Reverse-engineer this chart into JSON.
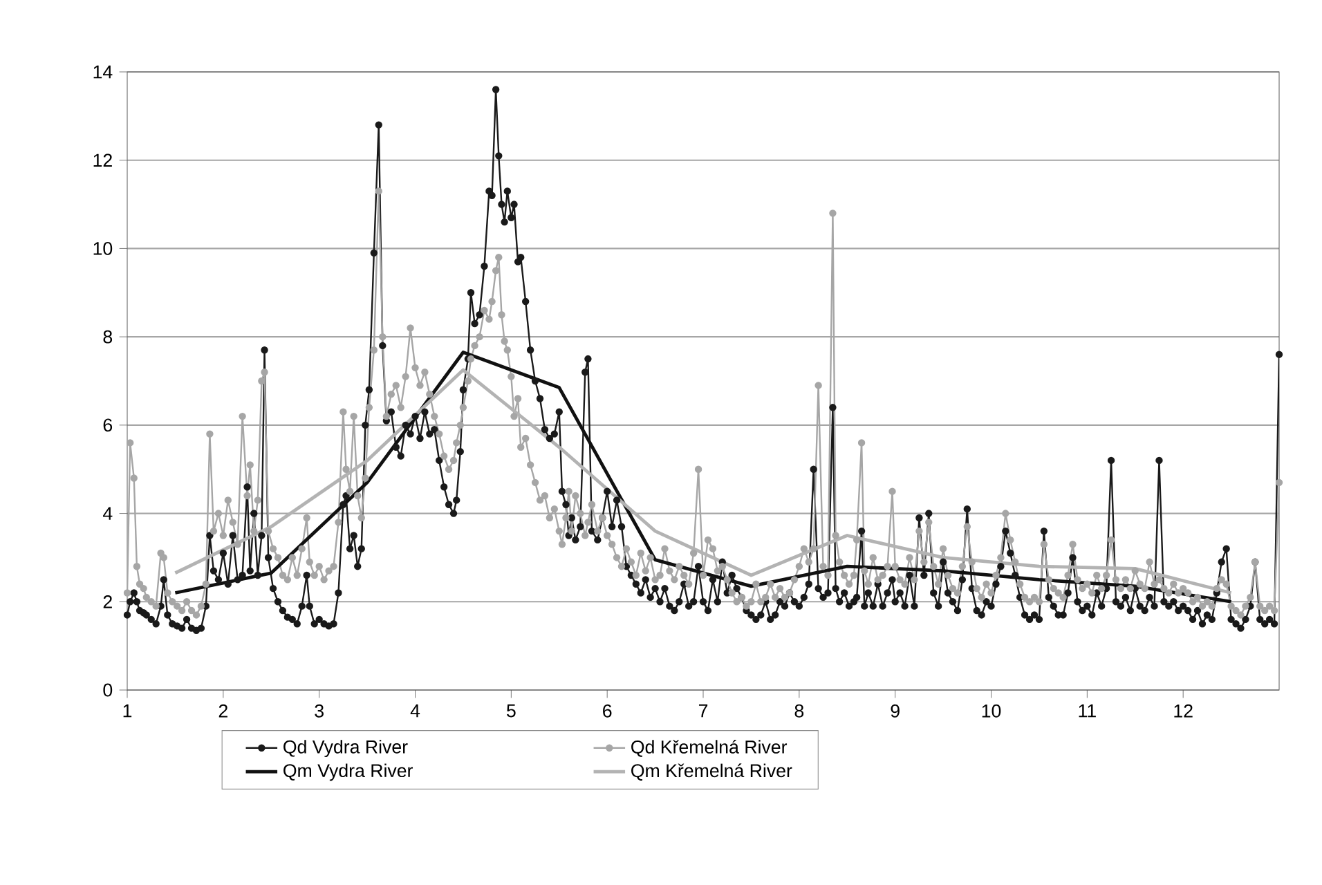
{
  "chart_data": {
    "type": "line",
    "x": [
      1.0,
      1.03,
      1.07,
      1.1,
      1.13,
      1.17,
      1.2,
      1.25,
      1.3,
      1.35,
      1.38,
      1.42,
      1.47,
      1.52,
      1.57,
      1.62,
      1.67,
      1.72,
      1.77,
      1.82,
      1.86,
      1.9,
      1.95,
      2.0,
      2.05,
      2.1,
      2.15,
      2.2,
      2.25,
      2.28,
      2.32,
      2.36,
      2.4,
      2.43,
      2.47,
      2.52,
      2.57,
      2.62,
      2.67,
      2.72,
      2.77,
      2.82,
      2.87,
      2.9,
      2.95,
      3.0,
      3.05,
      3.1,
      3.15,
      3.2,
      3.25,
      3.28,
      3.32,
      3.36,
      3.4,
      3.44,
      3.48,
      3.52,
      3.57,
      3.62,
      3.66,
      3.7,
      3.75,
      3.8,
      3.85,
      3.9,
      3.95,
      4.0,
      4.05,
      4.1,
      4.15,
      4.2,
      4.25,
      4.3,
      4.35,
      4.4,
      4.43,
      4.47,
      4.5,
      4.55,
      4.58,
      4.62,
      4.67,
      4.72,
      4.77,
      4.8,
      4.84,
      4.87,
      4.9,
      4.93,
      4.96,
      5.0,
      5.03,
      5.07,
      5.1,
      5.15,
      5.2,
      5.25,
      5.3,
      5.35,
      5.4,
      5.45,
      5.5,
      5.53,
      5.57,
      5.6,
      5.63,
      5.67,
      5.72,
      5.77,
      5.8,
      5.84,
      5.9,
      5.95,
      6.0,
      6.05,
      6.1,
      6.15,
      6.2,
      6.25,
      6.3,
      6.35,
      6.4,
      6.45,
      6.5,
      6.55,
      6.6,
      6.65,
      6.7,
      6.75,
      6.8,
      6.85,
      6.9,
      6.95,
      7.0,
      7.05,
      7.1,
      7.15,
      7.2,
      7.25,
      7.3,
      7.35,
      7.4,
      7.45,
      7.5,
      7.55,
      7.6,
      7.65,
      7.7,
      7.75,
      7.8,
      7.85,
      7.9,
      7.95,
      8.0,
      8.05,
      8.1,
      8.15,
      8.2,
      8.25,
      8.3,
      8.35,
      8.38,
      8.42,
      8.47,
      8.52,
      8.57,
      8.6,
      8.65,
      8.68,
      8.72,
      8.77,
      8.82,
      8.87,
      8.92,
      8.97,
      9.0,
      9.05,
      9.1,
      9.15,
      9.2,
      9.25,
      9.3,
      9.35,
      9.4,
      9.45,
      9.5,
      9.55,
      9.6,
      9.65,
      9.7,
      9.75,
      9.8,
      9.85,
      9.9,
      9.95,
      10.0,
      10.05,
      10.1,
      10.15,
      10.2,
      10.25,
      10.3,
      10.35,
      10.4,
      10.45,
      10.5,
      10.55,
      10.6,
      10.65,
      10.7,
      10.75,
      10.8,
      10.85,
      10.9,
      10.95,
      11.0,
      11.05,
      11.1,
      11.15,
      11.2,
      11.25,
      11.3,
      11.35,
      11.4,
      11.45,
      11.5,
      11.55,
      11.6,
      11.65,
      11.7,
      11.75,
      11.8,
      11.85,
      11.9,
      11.95,
      12.0,
      12.05,
      12.1,
      12.15,
      12.2,
      12.25,
      12.3,
      12.35,
      12.4,
      12.45,
      12.5,
      12.55,
      12.6,
      12.65,
      12.7,
      12.75,
      12.8,
      12.85,
      12.9,
      12.95,
      13.0
    ],
    "series": [
      {
        "name": "Qd Vydra River",
        "color": "#1a1a1a",
        "marker": "circle",
        "values": [
          1.7,
          2.0,
          2.2,
          2.0,
          1.8,
          1.75,
          1.7,
          1.6,
          1.5,
          1.9,
          2.5,
          1.7,
          1.5,
          1.45,
          1.4,
          1.6,
          1.4,
          1.35,
          1.4,
          1.9,
          3.5,
          2.7,
          2.5,
          3.1,
          2.4,
          3.5,
          2.5,
          2.6,
          4.6,
          2.7,
          4.0,
          2.6,
          3.5,
          7.7,
          3.0,
          2.3,
          2.0,
          1.8,
          1.65,
          1.6,
          1.5,
          1.9,
          2.6,
          1.9,
          1.5,
          1.6,
          1.5,
          1.45,
          1.5,
          2.2,
          4.2,
          4.4,
          3.2,
          3.5,
          2.8,
          3.2,
          6.0,
          6.8,
          9.9,
          12.8,
          7.8,
          6.1,
          6.3,
          5.5,
          5.3,
          6.0,
          5.8,
          6.2,
          5.7,
          6.3,
          5.8,
          5.9,
          5.2,
          4.6,
          4.2,
          4.0,
          4.3,
          5.4,
          6.8,
          7.5,
          9.0,
          8.3,
          8.5,
          9.6,
          11.3,
          11.2,
          13.6,
          12.1,
          11.0,
          10.6,
          11.3,
          10.7,
          11.0,
          9.7,
          9.8,
          8.8,
          7.7,
          7.0,
          6.6,
          5.9,
          5.7,
          5.8,
          6.3,
          4.5,
          4.2,
          3.5,
          3.9,
          3.4,
          3.7,
          7.2,
          7.5,
          3.6,
          3.4,
          3.9,
          4.5,
          3.7,
          4.3,
          3.7,
          2.8,
          2.6,
          2.4,
          2.2,
          2.5,
          2.1,
          2.3,
          2.0,
          2.3,
          1.9,
          1.8,
          2.0,
          2.4,
          1.9,
          2.0,
          2.8,
          2.0,
          1.8,
          2.5,
          2.0,
          2.9,
          2.2,
          2.6,
          2.3,
          2.1,
          1.8,
          1.7,
          1.6,
          1.7,
          2.0,
          1.6,
          1.7,
          2.0,
          1.9,
          2.2,
          2.0,
          1.9,
          2.1,
          2.4,
          5.0,
          2.3,
          2.1,
          2.2,
          6.4,
          2.3,
          2.0,
          2.2,
          1.9,
          2.0,
          2.1,
          3.6,
          1.9,
          2.2,
          1.9,
          2.4,
          1.9,
          2.2,
          2.5,
          2.0,
          2.2,
          1.9,
          2.6,
          1.9,
          3.9,
          2.6,
          4.0,
          2.2,
          1.9,
          2.9,
          2.2,
          2.0,
          1.8,
          2.5,
          4.1,
          2.3,
          1.8,
          1.7,
          2.0,
          1.9,
          2.4,
          2.8,
          3.6,
          3.1,
          2.6,
          2.1,
          1.7,
          1.6,
          1.7,
          1.6,
          3.6,
          2.1,
          1.9,
          1.7,
          1.7,
          2.2,
          3.0,
          2.0,
          1.8,
          1.9,
          1.7,
          2.2,
          1.9,
          2.3,
          5.2,
          2.0,
          1.9,
          2.1,
          1.8,
          2.3,
          1.9,
          1.8,
          2.1,
          1.9,
          5.2,
          2.0,
          1.9,
          2.0,
          1.8,
          1.9,
          1.8,
          1.6,
          1.8,
          1.5,
          1.7,
          1.6,
          2.2,
          2.9,
          3.2,
          1.6,
          1.5,
          1.4,
          1.6,
          1.9,
          2.9,
          1.6,
          1.5,
          1.6,
          1.5,
          7.6
        ]
      },
      {
        "name": "Qd Křemelná River",
        "color": "#a6a6a6",
        "marker": "circle",
        "values": [
          2.2,
          5.6,
          4.8,
          2.8,
          2.4,
          2.3,
          2.1,
          2.0,
          1.9,
          3.1,
          3.0,
          2.2,
          2.0,
          1.9,
          1.8,
          2.0,
          1.8,
          1.7,
          1.9,
          2.4,
          5.8,
          3.6,
          4.0,
          3.5,
          4.3,
          3.8,
          3.3,
          6.2,
          4.4,
          5.1,
          3.6,
          4.3,
          7.0,
          7.2,
          3.6,
          3.2,
          3.0,
          2.6,
          2.5,
          3.0,
          2.6,
          3.2,
          3.9,
          2.9,
          2.6,
          2.8,
          2.5,
          2.7,
          2.8,
          3.8,
          6.3,
          5.0,
          4.5,
          6.2,
          4.4,
          3.9,
          4.8,
          6.4,
          7.7,
          11.3,
          8.0,
          6.2,
          6.7,
          6.9,
          6.4,
          7.1,
          8.2,
          7.3,
          6.9,
          7.2,
          6.7,
          6.2,
          5.8,
          5.3,
          5.0,
          5.2,
          5.6,
          6.0,
          6.4,
          7.0,
          7.5,
          7.8,
          8.0,
          8.6,
          8.4,
          8.8,
          9.5,
          9.8,
          8.5,
          7.9,
          7.7,
          7.1,
          6.2,
          6.6,
          5.5,
          5.7,
          5.1,
          4.7,
          4.3,
          4.4,
          3.9,
          4.1,
          3.6,
          3.3,
          3.9,
          4.5,
          3.6,
          4.4,
          4.0,
          3.5,
          3.8,
          4.2,
          3.6,
          3.9,
          3.5,
          3.3,
          3.0,
          2.8,
          3.2,
          2.9,
          2.6,
          3.1,
          2.7,
          3.0,
          2.5,
          2.6,
          3.2,
          2.7,
          2.5,
          2.8,
          2.6,
          2.4,
          3.1,
          5.0,
          2.6,
          3.4,
          3.2,
          2.7,
          2.8,
          2.5,
          2.2,
          2.0,
          2.1,
          1.9,
          2.0,
          2.4,
          2.0,
          2.1,
          2.4,
          2.1,
          2.3,
          2.1,
          2.2,
          2.5,
          2.8,
          3.2,
          2.9,
          3.2,
          6.9,
          2.8,
          2.6,
          10.8,
          3.5,
          2.9,
          2.6,
          2.4,
          2.6,
          3.4,
          5.6,
          2.7,
          2.4,
          3.0,
          2.5,
          2.6,
          2.8,
          4.5,
          2.8,
          2.5,
          2.4,
          3.0,
          2.5,
          3.6,
          2.9,
          3.8,
          2.8,
          2.4,
          3.2,
          2.6,
          2.3,
          2.2,
          2.8,
          3.7,
          2.9,
          2.3,
          2.1,
          2.4,
          2.2,
          2.6,
          3.0,
          4.0,
          3.4,
          2.9,
          2.4,
          2.1,
          2.0,
          2.1,
          2.0,
          3.3,
          2.5,
          2.3,
          2.2,
          2.1,
          2.6,
          3.3,
          2.5,
          2.3,
          2.4,
          2.2,
          2.6,
          2.3,
          2.6,
          3.4,
          2.5,
          2.3,
          2.5,
          2.3,
          2.7,
          2.4,
          2.3,
          2.9,
          2.4,
          2.5,
          2.3,
          2.2,
          2.4,
          2.2,
          2.3,
          2.2,
          2.0,
          2.1,
          1.9,
          2.0,
          1.9,
          2.3,
          2.5,
          2.4,
          1.9,
          1.8,
          1.7,
          1.9,
          2.1,
          2.9,
          1.9,
          1.8,
          1.9,
          1.8,
          4.7
        ]
      },
      {
        "name": "Qm Vydra River",
        "color": "#111111",
        "marker": "none",
        "x": [
          1.5,
          2.5,
          3.5,
          4.5,
          5.5,
          6.5,
          7.5,
          8.5,
          9.5,
          10.5,
          11.5,
          12.5
        ],
        "values": [
          2.2,
          2.65,
          4.7,
          7.65,
          6.85,
          2.95,
          2.35,
          2.8,
          2.7,
          2.5,
          2.35,
          2.0
        ]
      },
      {
        "name": "Qm Křemelná River",
        "color": "#b3b3b3",
        "marker": "none",
        "x": [
          1.5,
          2.5,
          3.5,
          4.5,
          5.5,
          6.5,
          7.5,
          8.5,
          9.5,
          10.5,
          11.5,
          12.5
        ],
        "values": [
          2.65,
          3.7,
          5.2,
          7.25,
          5.5,
          3.6,
          2.6,
          3.5,
          3.0,
          2.8,
          2.75,
          2.2
        ]
      }
    ],
    "xlim": [
      1,
      13
    ],
    "xticks": [
      1,
      2,
      3,
      4,
      5,
      6,
      7,
      8,
      9,
      10,
      11,
      12
    ],
    "ylim": [
      0,
      14
    ],
    "yticks": [
      0,
      2,
      4,
      6,
      8,
      10,
      12,
      14
    ],
    "grid": "y",
    "legend": "bottom",
    "line_style": "solid"
  }
}
